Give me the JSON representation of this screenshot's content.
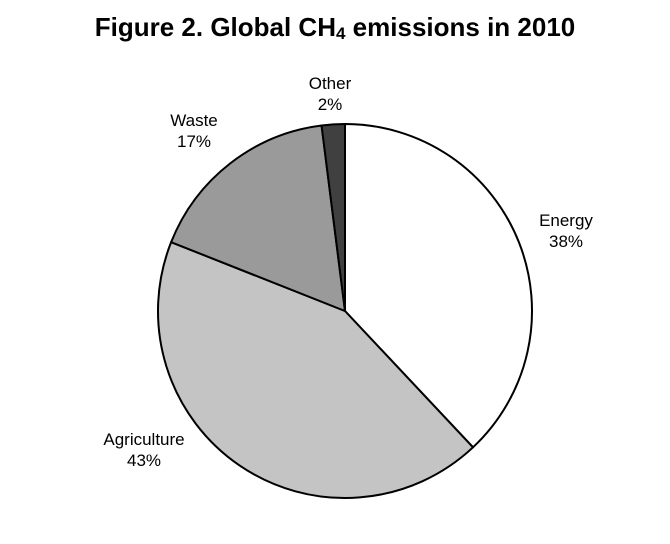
{
  "chart_data": {
    "type": "pie",
    "title": {
      "prefix": "Figure 2.  Global CH",
      "subscript": "4",
      "suffix": " emissions in 2010"
    },
    "slices": [
      {
        "name": "Energy",
        "percent_label": "38%",
        "value": 38,
        "color": "#ffffff"
      },
      {
        "name": "Agriculture",
        "percent_label": "43%",
        "value": 43,
        "color": "#c4c4c4"
      },
      {
        "name": "Waste",
        "percent_label": "17%",
        "value": 17,
        "color": "#9a9a9a"
      },
      {
        "name": "Other",
        "percent_label": "2%",
        "value": 2,
        "color": "#404040"
      }
    ],
    "start": "12 o'clock",
    "direction": "clockwise",
    "stroke_color": "#000000"
  }
}
